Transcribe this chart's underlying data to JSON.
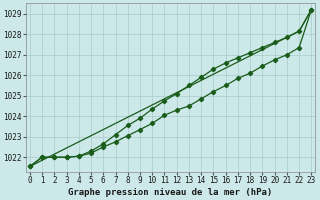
{
  "title": "Graphe pression niveau de la mer (hPa)",
  "bg_color": "#cce8e8",
  "grid_color": "#aacccc",
  "line_color": "#1a5c1a",
  "xlim": [
    -0.3,
    23.3
  ],
  "ylim": [
    1021.3,
    1029.5
  ],
  "yticks": [
    1022,
    1023,
    1024,
    1025,
    1026,
    1027,
    1028,
    1029
  ],
  "xticks": [
    0,
    1,
    2,
    3,
    4,
    5,
    6,
    7,
    8,
    9,
    10,
    11,
    12,
    13,
    14,
    15,
    16,
    17,
    18,
    19,
    20,
    21,
    22,
    23
  ],
  "series_smooth": [
    1021.55,
    1021.85,
    1022.15,
    1022.45,
    1022.75,
    1023.05,
    1023.35,
    1023.65,
    1023.95,
    1024.25,
    1024.55,
    1024.85,
    1025.15,
    1025.45,
    1025.75,
    1026.05,
    1026.35,
    1026.65,
    1026.95,
    1027.25,
    1027.55,
    1027.85,
    1028.15,
    1029.2
  ],
  "series_low": [
    1021.55,
    1022.0,
    1022.0,
    1022.0,
    1022.05,
    1022.2,
    1022.5,
    1022.75,
    1023.05,
    1023.35,
    1023.65,
    1024.05,
    1024.3,
    1024.5,
    1024.85,
    1025.2,
    1025.5,
    1025.85,
    1026.1,
    1026.45,
    1026.75,
    1027.0,
    1027.35,
    1029.2
  ],
  "series_high": [
    1021.55,
    1022.0,
    1022.0,
    1022.0,
    1022.05,
    1022.3,
    1022.65,
    1023.1,
    1023.55,
    1023.9,
    1024.35,
    1024.75,
    1025.1,
    1025.5,
    1025.9,
    1026.3,
    1026.6,
    1026.85,
    1027.1,
    1027.35,
    1027.6,
    1027.85,
    1028.15,
    1029.2
  ],
  "tick_fontsize": 5.5,
  "label_fontsize": 6.5
}
